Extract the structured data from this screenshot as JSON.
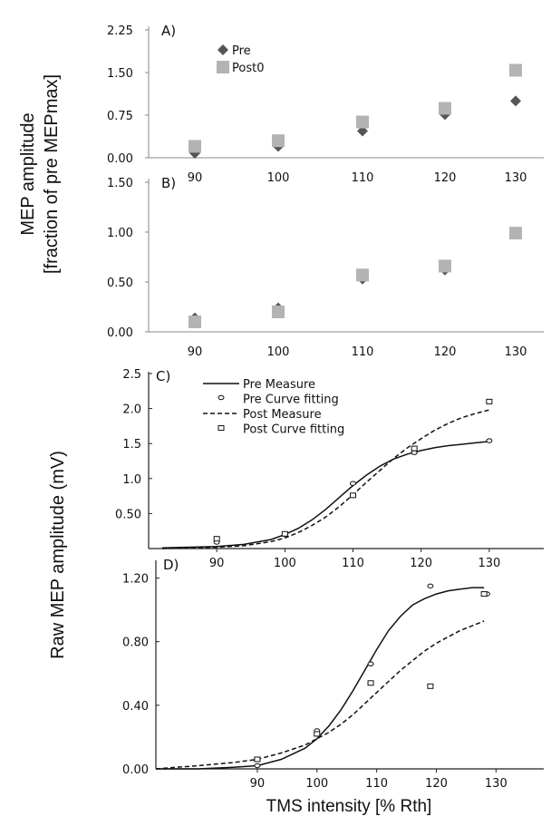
{
  "figure": {
    "ylabel_top_line1": "MEP amplitude",
    "ylabel_top_line2": "[fraction of pre MEPmax]",
    "ylabel_bottom": "Raw MEP amplitude (mV)",
    "xlabel": "TMS intensity [% Rth]"
  },
  "chart_data": [
    {
      "panel": "A)",
      "type": "scatter",
      "categories": [
        "90",
        "100",
        "110",
        "120",
        "130"
      ],
      "x": [
        90,
        100,
        110,
        120,
        130
      ],
      "y_ticks": [
        "0.00",
        "0.75",
        "1.50",
        "2.25"
      ],
      "ylim": [
        0,
        2.25
      ],
      "legend_placement": "top-left",
      "series": [
        {
          "name": "Pre",
          "marker": "diamond",
          "color": "#555555",
          "values": [
            0.08,
            0.2,
            0.47,
            0.76,
            1.0
          ]
        },
        {
          "name": "Post0",
          "marker": "square",
          "color": "#b3b3b3",
          "values": [
            0.2,
            0.3,
            0.63,
            0.87,
            1.54
          ]
        }
      ]
    },
    {
      "panel": "B)",
      "type": "scatter",
      "categories": [
        "90",
        "100",
        "110",
        "120",
        "130"
      ],
      "x": [
        90,
        100,
        110,
        120,
        130
      ],
      "y_ticks": [
        "0.00",
        "0.50",
        "1.00",
        "1.50"
      ],
      "ylim": [
        0,
        1.5
      ],
      "series": [
        {
          "marker": "diamond",
          "color": "#555555",
          "values": [
            0.14,
            0.24,
            0.53,
            0.62,
            1.0
          ]
        },
        {
          "marker": "square",
          "color": "#b3b3b3",
          "values": [
            0.1,
            0.2,
            0.57,
            0.66,
            0.99
          ]
        }
      ]
    },
    {
      "panel": "C)",
      "type": "line",
      "categories": [
        "90",
        "100",
        "110",
        "120",
        "130"
      ],
      "y_ticks": [
        "0.50",
        "1.0",
        "1.5",
        "2.0",
        "2.5"
      ],
      "ylim": [
        0,
        2.5
      ],
      "xlim": [
        80,
        138
      ],
      "legend_placement": "top-left",
      "series": [
        {
          "name": "Pre Measure",
          "style": "solid",
          "x": [
            82,
            86,
            90,
            94,
            98,
            100,
            102,
            104,
            106,
            108,
            110,
            112,
            114,
            116,
            118,
            120,
            122,
            124,
            126,
            128,
            130
          ],
          "values": [
            0.01,
            0.02,
            0.03,
            0.06,
            0.13,
            0.2,
            0.29,
            0.41,
            0.56,
            0.73,
            0.9,
            1.05,
            1.18,
            1.28,
            1.35,
            1.4,
            1.44,
            1.47,
            1.49,
            1.51,
            1.53
          ]
        },
        {
          "name": "Pre Curve fitting",
          "marker": "circle",
          "x": [
            90,
            100,
            110,
            119,
            130
          ],
          "values": [
            0.09,
            0.2,
            0.93,
            1.37,
            1.54
          ]
        },
        {
          "name": "Post Measure",
          "style": "dashed",
          "x": [
            82,
            86,
            90,
            94,
            98,
            100,
            102,
            104,
            106,
            108,
            110,
            112,
            114,
            116,
            118,
            120,
            122,
            124,
            126,
            128,
            130
          ],
          "values": [
            0.0,
            0.01,
            0.02,
            0.04,
            0.1,
            0.15,
            0.23,
            0.33,
            0.45,
            0.6,
            0.77,
            0.95,
            1.12,
            1.29,
            1.44,
            1.57,
            1.69,
            1.79,
            1.87,
            1.93,
            1.98
          ]
        },
        {
          "name": "Post Curve fitting",
          "marker": "square-open",
          "x": [
            90,
            100,
            110,
            119,
            130
          ],
          "values": [
            0.14,
            0.21,
            0.76,
            1.43,
            2.1
          ]
        }
      ]
    },
    {
      "panel": "D)",
      "type": "line",
      "categories": [
        "90",
        "100",
        "110",
        "120",
        "130"
      ],
      "y_ticks": [
        "0.00",
        "0.40",
        "0.80",
        "1.20"
      ],
      "ylim": [
        0,
        1.3
      ],
      "xlim": [
        73,
        138
      ],
      "series": [
        {
          "style": "solid",
          "x": [
            73,
            80,
            86,
            90,
            94,
            98,
            100,
            102,
            104,
            106,
            108,
            110,
            112,
            114,
            116,
            118,
            120,
            122,
            124,
            126,
            128
          ],
          "values": [
            0.0,
            0.0,
            0.01,
            0.02,
            0.06,
            0.13,
            0.19,
            0.27,
            0.37,
            0.49,
            0.62,
            0.75,
            0.87,
            0.96,
            1.03,
            1.07,
            1.1,
            1.12,
            1.13,
            1.14,
            1.14
          ]
        },
        {
          "marker": "circle",
          "x": [
            90,
            100,
            109,
            119,
            128.5
          ],
          "values": [
            0.02,
            0.24,
            0.66,
            1.15,
            1.1
          ]
        },
        {
          "style": "dashed",
          "x": [
            73,
            80,
            86,
            90,
            94,
            98,
            100,
            102,
            104,
            106,
            108,
            110,
            112,
            114,
            116,
            118,
            120,
            122,
            124,
            126,
            128
          ],
          "values": [
            0.0,
            0.02,
            0.04,
            0.06,
            0.1,
            0.15,
            0.19,
            0.23,
            0.28,
            0.34,
            0.41,
            0.48,
            0.55,
            0.62,
            0.68,
            0.74,
            0.79,
            0.83,
            0.87,
            0.9,
            0.93
          ]
        },
        {
          "marker": "square-open",
          "x": [
            90,
            100,
            109,
            119,
            128
          ],
          "values": [
            0.06,
            0.22,
            0.54,
            0.52,
            1.1
          ]
        }
      ]
    }
  ]
}
